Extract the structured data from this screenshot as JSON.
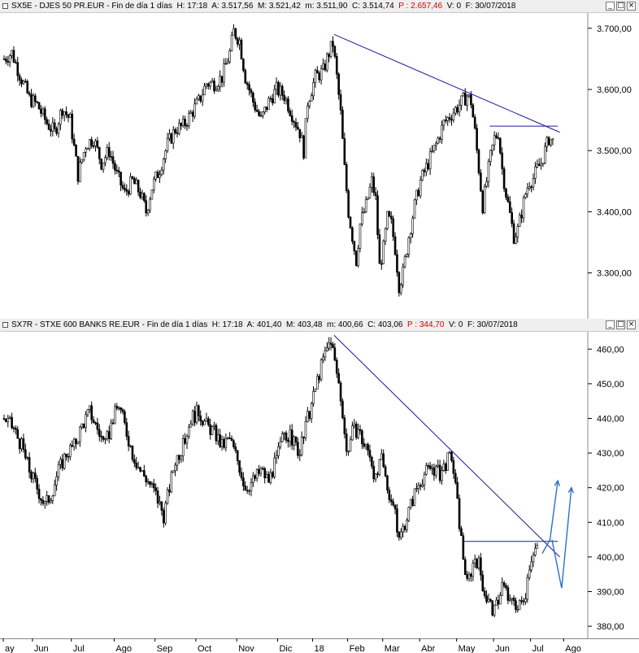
{
  "chart_data": [
    {
      "type": "candlestick",
      "header": {
        "symbol": "SX5E - DJES 50 PR.EUR - Fin de día 1 días",
        "h": "H: 17:18",
        "a": "A: 3.517,56",
        "m": "M: 3.521,42",
        "min": "m: 3.511,90",
        "c": "C: 3.514,74",
        "p": "P : 2.657,46",
        "v": "V: 0",
        "f": "F: 30/07/2018"
      },
      "y_ticks": [
        "3.700,00",
        "3.600,00",
        "3.500,00",
        "3.400,00",
        "3.300,00"
      ],
      "y_tick_values": [
        3700,
        3600,
        3500,
        3400,
        3300
      ],
      "ylim": [
        3225,
        3725
      ],
      "close_path": [
        [
          0,
          3650
        ],
        [
          4,
          3660
        ],
        [
          8,
          3625
        ],
        [
          13,
          3585
        ],
        [
          17,
          3575
        ],
        [
          22,
          3545
        ],
        [
          26,
          3530
        ],
        [
          30,
          3570
        ],
        [
          34,
          3550
        ],
        [
          38,
          3460
        ],
        [
          42,
          3510
        ],
        [
          46,
          3520
        ],
        [
          50,
          3480
        ],
        [
          54,
          3500
        ],
        [
          58,
          3460
        ],
        [
          62,
          3430
        ],
        [
          66,
          3450
        ],
        [
          70,
          3430
        ],
        [
          73,
          3400
        ],
        [
          76,
          3440
        ],
        [
          80,
          3470
        ],
        [
          84,
          3510
        ],
        [
          88,
          3535
        ],
        [
          92,
          3540
        ],
        [
          96,
          3560
        ],
        [
          100,
          3580
        ],
        [
          104,
          3610
        ],
        [
          108,
          3610
        ],
        [
          112,
          3620
        ],
        [
          116,
          3660
        ],
        [
          118,
          3695
        ],
        [
          121,
          3680
        ],
        [
          124,
          3620
        ],
        [
          128,
          3580
        ],
        [
          132,
          3550
        ],
        [
          136,
          3580
        ],
        [
          140,
          3600
        ],
        [
          144,
          3590
        ],
        [
          148,
          3560
        ],
        [
          152,
          3530
        ],
        [
          154,
          3500
        ],
        [
          156,
          3580
        ],
        [
          160,
          3620
        ],
        [
          164,
          3630
        ],
        [
          167,
          3660
        ],
        [
          169,
          3675
        ],
        [
          171,
          3620
        ],
        [
          173,
          3560
        ],
        [
          175,
          3470
        ],
        [
          177,
          3400
        ],
        [
          179,
          3360
        ],
        [
          181,
          3320
        ],
        [
          183,
          3380
        ],
        [
          186,
          3410
        ],
        [
          189,
          3450
        ],
        [
          191,
          3420
        ],
        [
          193,
          3310
        ],
        [
          195,
          3340
        ],
        [
          197,
          3390
        ],
        [
          199,
          3380
        ],
        [
          201,
          3340
        ],
        [
          203,
          3280
        ],
        [
          205,
          3300
        ],
        [
          208,
          3360
        ],
        [
          211,
          3410
        ],
        [
          214,
          3450
        ],
        [
          218,
          3480
        ],
        [
          222,
          3510
        ],
        [
          226,
          3545
        ],
        [
          230,
          3560
        ],
        [
          234,
          3575
        ],
        [
          238,
          3590
        ],
        [
          240,
          3580
        ],
        [
          242,
          3530
        ],
        [
          244,
          3470
        ],
        [
          246,
          3410
        ],
        [
          248,
          3450
        ],
        [
          250,
          3490
        ],
        [
          252,
          3520
        ],
        [
          254,
          3530
        ],
        [
          256,
          3470
        ],
        [
          258,
          3430
        ],
        [
          260,
          3395
        ],
        [
          262,
          3360
        ],
        [
          264,
          3370
        ],
        [
          266,
          3400
        ],
        [
          268,
          3430
        ],
        [
          270,
          3450
        ],
        [
          272,
          3455
        ],
        [
          274,
          3470
        ],
        [
          276,
          3480
        ],
        [
          278,
          3500
        ],
        [
          280,
          3520
        ],
        [
          282,
          3515
        ]
      ],
      "annotations": [
        {
          "type": "trendline",
          "from": [
            170,
            3690
          ],
          "to": [
            286,
            3530
          ]
        },
        {
          "type": "horizontal",
          "from": [
            250,
            3540
          ],
          "to": [
            285,
            3540
          ]
        }
      ]
    },
    {
      "type": "candlestick",
      "header": {
        "symbol": "SX7R - STXE 600 BANKS RE.EUR - Fin de día 1 días",
        "h": "H: 17:18",
        "a": "A: 401,40",
        "m": "M: 403,48",
        "min": "m: 400,66",
        "c": "C: 403,06",
        "p": "P : 344,70",
        "v": "V: 0",
        "f": "F: 30/07/2018"
      },
      "y_ticks": [
        "460,00",
        "450,00",
        "440,00",
        "430,00",
        "420,00",
        "410,00",
        "400,00",
        "390,00",
        "380,00"
      ],
      "y_tick_values": [
        460,
        450,
        440,
        430,
        420,
        410,
        400,
        390,
        380
      ],
      "ylim": [
        376.5,
        465
      ],
      "close_path": [
        [
          0,
          440
        ],
        [
          5,
          437
        ],
        [
          9,
          432
        ],
        [
          13,
          425
        ],
        [
          17,
          420
        ],
        [
          21,
          415
        ],
        [
          24,
          418
        ],
        [
          28,
          425
        ],
        [
          32,
          430
        ],
        [
          36,
          432
        ],
        [
          40,
          438
        ],
        [
          44,
          442
        ],
        [
          48,
          437
        ],
        [
          52,
          432
        ],
        [
          56,
          440
        ],
        [
          59,
          444
        ],
        [
          62,
          438
        ],
        [
          66,
          430
        ],
        [
          70,
          425
        ],
        [
          74,
          422
        ],
        [
          78,
          418
        ],
        [
          82,
          412
        ],
        [
          85,
          420
        ],
        [
          88,
          428
        ],
        [
          92,
          432
        ],
        [
          96,
          440
        ],
        [
          100,
          442
        ],
        [
          104,
          438
        ],
        [
          108,
          436
        ],
        [
          112,
          432
        ],
        [
          116,
          434
        ],
        [
          120,
          428
        ],
        [
          124,
          420
        ],
        [
          128,
          422
        ],
        [
          132,
          425
        ],
        [
          136,
          422
        ],
        [
          140,
          428
        ],
        [
          144,
          436
        ],
        [
          148,
          434
        ],
        [
          152,
          430
        ],
        [
          156,
          440
        ],
        [
          159,
          446
        ],
        [
          161,
          451
        ],
        [
          164,
          457
        ],
        [
          166,
          460
        ],
        [
          168,
          463
        ],
        [
          170,
          456
        ],
        [
          172,
          450
        ],
        [
          174,
          442
        ],
        [
          176,
          430
        ],
        [
          179,
          436
        ],
        [
          182,
          437
        ],
        [
          185,
          432
        ],
        [
          188,
          430
        ],
        [
          191,
          422
        ],
        [
          194,
          428
        ],
        [
          197,
          420
        ],
        [
          200,
          415
        ],
        [
          203,
          405
        ],
        [
          206,
          410
        ],
        [
          209,
          415
        ],
        [
          212,
          420
        ],
        [
          216,
          424
        ],
        [
          220,
          426
        ],
        [
          224,
          424
        ],
        [
          228,
          428
        ],
        [
          230,
          429
        ],
        [
          232,
          420
        ],
        [
          234,
          410
        ],
        [
          236,
          400
        ],
        [
          238,
          392
        ],
        [
          240,
          396
        ],
        [
          242,
          400
        ],
        [
          244,
          398
        ],
        [
          246,
          392
        ],
        [
          248,
          388
        ],
        [
          250,
          386
        ],
        [
          252,
          384
        ],
        [
          254,
          388
        ],
        [
          256,
          392
        ],
        [
          258,
          390
        ],
        [
          260,
          386
        ],
        [
          262,
          388
        ],
        [
          264,
          385
        ],
        [
          266,
          387
        ],
        [
          268,
          390
        ],
        [
          270,
          398
        ],
        [
          272,
          402
        ],
        [
          274,
          403
        ]
      ],
      "annotations": [
        {
          "type": "trendline",
          "from": [
            170,
            464
          ],
          "to": [
            286,
            400
          ]
        },
        {
          "type": "horizontal",
          "from": [
            236,
            404.5
          ],
          "to": [
            285,
            404.5
          ]
        },
        {
          "type": "arrow-path",
          "points": [
            [
              277,
              401
            ],
            [
              281,
              405
            ],
            [
              285,
              422
            ]
          ]
        },
        {
          "type": "arrow-path",
          "points": [
            [
              282,
              405
            ],
            [
              287,
              391
            ],
            [
              292,
              420
            ]
          ]
        }
      ]
    }
  ],
  "x_axis": {
    "labels": [
      "ay",
      "Jun",
      "Jul",
      "Ago",
      "Sep",
      "Oct",
      "Nov",
      "Dic",
      "18",
      "Feb",
      "Mar",
      "Abr",
      "May",
      "Jun",
      "Jul",
      "Ago"
    ],
    "label_index": [
      0,
      15,
      35,
      57,
      78,
      99,
      120,
      141,
      159,
      177,
      195,
      214,
      233,
      252,
      271,
      288
    ],
    "total_bars": 300
  },
  "colors": {
    "candles": "#000000",
    "annotation": "#1a1a9c",
    "arrow": "#2a6fc9",
    "gridline": "#d4d4d4",
    "header_bg": "#efefef",
    "p_value": "#d60000"
  },
  "icons": [
    "panel-menu-icon",
    "minimize-icon",
    "maximize-icon",
    "close-icon"
  ],
  "window_controls": {
    "minimize": "_",
    "maximize": "□",
    "close": "×"
  }
}
